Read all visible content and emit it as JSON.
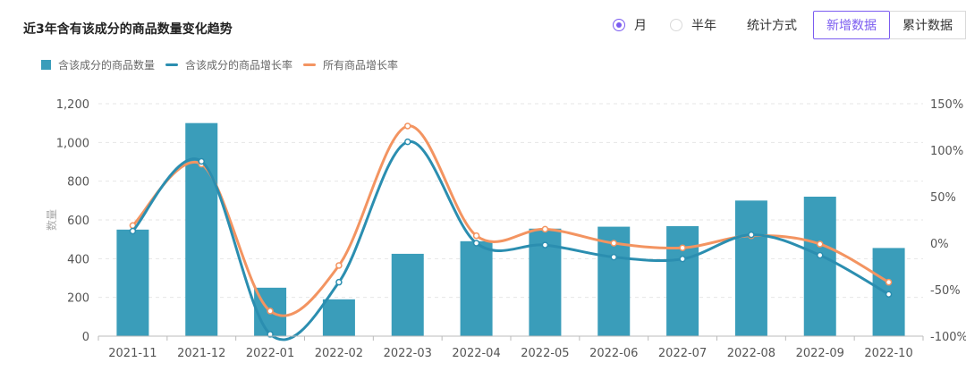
{
  "title": "近3年含有该成分的商品数量变化趋势",
  "controls": {
    "radio_month": "月",
    "radio_halfyear": "半年",
    "stat_label": "统计方式",
    "btn_new": "新增数据",
    "btn_cumulative": "累计数据",
    "selected_period": "月",
    "selected_mode": "新增数据"
  },
  "colors": {
    "bar": "#3a9dba",
    "line_item": "#2b8eb0",
    "line_all": "#f39461",
    "accent": "#7b5cf0"
  },
  "chart_data": {
    "type": "bar",
    "categories": [
      "2021-11",
      "2021-12",
      "2022-01",
      "2022-02",
      "2022-03",
      "2022-04",
      "2022-05",
      "2022-06",
      "2022-07",
      "2022-08",
      "2022-09",
      "2022-10"
    ],
    "ylabel": "数量",
    "ylim": [
      0,
      1200
    ],
    "yticks": [
      "0",
      "200",
      "400",
      "600",
      "800",
      "1,000",
      "1,200"
    ],
    "y2lim": [
      -100,
      150
    ],
    "y2ticks": [
      "-100%",
      "-50%",
      "0%",
      "50%",
      "100%",
      "150%"
    ],
    "grid": true,
    "legend_position": "top-left",
    "series": [
      {
        "name": "含该成分的商品数量",
        "type": "bar",
        "values": [
          550,
          1100,
          250,
          190,
          425,
          490,
          555,
          565,
          568,
          700,
          720,
          455
        ]
      },
      {
        "name": "含该成分的商品增长率",
        "type": "line",
        "values": [
          13,
          88,
          -98,
          -42,
          109,
          0,
          -2,
          -15,
          -17,
          9,
          -13,
          -55
        ]
      },
      {
        "name": "所有商品增长率",
        "type": "line",
        "values": [
          19,
          85,
          -73,
          -24,
          126,
          8,
          15,
          0,
          -5,
          8,
          -1,
          -42
        ]
      }
    ]
  }
}
